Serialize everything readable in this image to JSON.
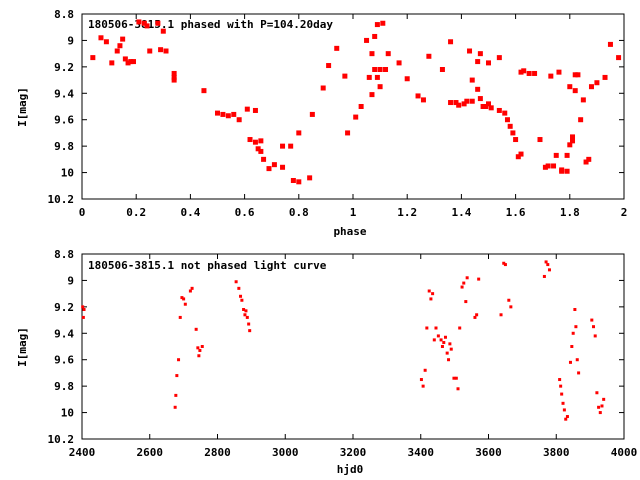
{
  "chart_data": [
    {
      "type": "scatter",
      "title": "180506-3815.1 phased with P=104.20day",
      "xlabel": "phase",
      "ylabel": "I[mag]",
      "xlim": [
        0,
        2
      ],
      "ylim": [
        10.2,
        8.8
      ],
      "y_inverted": true,
      "grid": false,
      "marker_color": "#ff0000",
      "xticks": [
        "0",
        "0.2",
        "0.4",
        "0.6",
        "0.8",
        "1",
        "1.2",
        "1.4",
        "1.6",
        "1.8",
        "2"
      ],
      "yticks": [
        "8.8",
        "9",
        "9.2",
        "9.4",
        "9.6",
        "9.8",
        "10",
        "10.2"
      ],
      "points": [
        [
          0.04,
          9.13
        ],
        [
          0.07,
          8.98
        ],
        [
          0.09,
          9.01
        ],
        [
          0.11,
          9.17
        ],
        [
          0.13,
          9.08
        ],
        [
          0.14,
          9.04
        ],
        [
          0.15,
          8.99
        ],
        [
          0.16,
          9.14
        ],
        [
          0.17,
          9.17
        ],
        [
          0.18,
          9.16
        ],
        [
          0.19,
          9.16
        ],
        [
          0.21,
          8.86
        ],
        [
          0.23,
          8.87
        ],
        [
          0.24,
          8.89
        ],
        [
          0.25,
          9.08
        ],
        [
          0.28,
          8.87
        ],
        [
          0.29,
          9.07
        ],
        [
          0.3,
          8.93
        ],
        [
          0.31,
          9.08
        ],
        [
          0.34,
          9.25
        ],
        [
          0.34,
          9.28
        ],
        [
          0.34,
          9.3
        ],
        [
          0.45,
          9.38
        ],
        [
          0.5,
          9.55
        ],
        [
          0.52,
          9.56
        ],
        [
          0.54,
          9.57
        ],
        [
          0.56,
          9.56
        ],
        [
          0.58,
          9.6
        ],
        [
          0.61,
          9.52
        ],
        [
          0.62,
          9.75
        ],
        [
          0.64,
          9.53
        ],
        [
          0.64,
          9.77
        ],
        [
          0.65,
          9.82
        ],
        [
          0.66,
          9.76
        ],
        [
          0.66,
          9.84
        ],
        [
          0.67,
          9.9
        ],
        [
          0.69,
          9.97
        ],
        [
          0.71,
          9.94
        ],
        [
          0.74,
          9.96
        ],
        [
          0.74,
          9.8
        ],
        [
          0.77,
          9.8
        ],
        [
          0.78,
          10.06
        ],
        [
          0.8,
          10.07
        ],
        [
          0.8,
          9.7
        ],
        [
          0.84,
          10.04
        ],
        [
          0.85,
          9.56
        ],
        [
          0.89,
          9.36
        ],
        [
          0.91,
          9.19
        ],
        [
          0.94,
          9.06
        ],
        [
          0.97,
          9.27
        ],
        [
          0.98,
          9.7
        ],
        [
          1.01,
          9.58
        ],
        [
          1.03,
          9.5
        ],
        [
          1.05,
          9.0
        ],
        [
          1.06,
          9.28
        ],
        [
          1.07,
          9.1
        ],
        [
          1.07,
          9.41
        ],
        [
          1.08,
          9.22
        ],
        [
          1.08,
          8.97
        ],
        [
          1.09,
          8.88
        ],
        [
          1.09,
          9.28
        ],
        [
          1.1,
          9.35
        ],
        [
          1.1,
          9.22
        ],
        [
          1.11,
          8.87
        ],
        [
          1.12,
          9.22
        ],
        [
          1.13,
          9.1
        ],
        [
          1.17,
          9.17
        ],
        [
          1.2,
          9.29
        ],
        [
          1.24,
          9.42
        ],
        [
          1.26,
          9.45
        ],
        [
          1.28,
          9.12
        ],
        [
          1.33,
          9.22
        ],
        [
          1.36,
          9.47
        ],
        [
          1.36,
          9.01
        ],
        [
          1.38,
          9.47
        ],
        [
          1.39,
          9.49
        ],
        [
          1.41,
          9.48
        ],
        [
          1.42,
          9.46
        ],
        [
          1.43,
          9.08
        ],
        [
          1.44,
          9.3
        ],
        [
          1.44,
          9.46
        ],
        [
          1.46,
          9.37
        ],
        [
          1.46,
          9.16
        ],
        [
          1.47,
          9.1
        ],
        [
          1.47,
          9.44
        ],
        [
          1.48,
          9.5
        ],
        [
          1.49,
          9.5
        ],
        [
          1.5,
          9.17
        ],
        [
          1.5,
          9.48
        ],
        [
          1.51,
          9.51
        ],
        [
          1.54,
          9.13
        ],
        [
          1.54,
          9.53
        ],
        [
          1.56,
          9.55
        ],
        [
          1.57,
          9.6
        ],
        [
          1.58,
          9.65
        ],
        [
          1.59,
          9.7
        ],
        [
          1.6,
          9.75
        ],
        [
          1.61,
          9.88
        ],
        [
          1.62,
          9.86
        ],
        [
          1.62,
          9.24
        ],
        [
          1.63,
          9.23
        ],
        [
          1.65,
          9.25
        ],
        [
          1.67,
          9.25
        ],
        [
          1.69,
          9.75
        ],
        [
          1.71,
          9.96
        ],
        [
          1.72,
          9.95
        ],
        [
          1.73,
          9.27
        ],
        [
          1.74,
          9.95
        ],
        [
          1.75,
          9.87
        ],
        [
          1.76,
          9.24
        ],
        [
          1.77,
          9.98
        ],
        [
          1.77,
          9.99
        ],
        [
          1.79,
          9.99
        ],
        [
          1.79,
          9.87
        ],
        [
          1.8,
          9.79
        ],
        [
          1.8,
          9.35
        ],
        [
          1.81,
          9.76
        ],
        [
          1.81,
          9.73
        ],
        [
          1.82,
          9.38
        ],
        [
          1.82,
          9.26
        ],
        [
          1.83,
          9.26
        ],
        [
          1.84,
          9.6
        ],
        [
          1.85,
          9.45
        ],
        [
          1.86,
          9.92
        ],
        [
          1.87,
          9.9
        ],
        [
          1.88,
          9.35
        ],
        [
          1.9,
          9.32
        ],
        [
          1.93,
          9.28
        ],
        [
          1.95,
          9.03
        ],
        [
          1.98,
          9.13
        ]
      ]
    },
    {
      "type": "scatter",
      "title": "180506-3815.1 not phased light curve",
      "xlabel": "hjd0",
      "ylabel": "I[mag]",
      "xlim": [
        2400,
        4000
      ],
      "ylim": [
        10.2,
        8.8
      ],
      "y_inverted": true,
      "grid": false,
      "marker_color": "#ff0000",
      "xticks": [
        "2400",
        "2600",
        "2800",
        "3000",
        "3200",
        "3400",
        "3600",
        "3800",
        "4000"
      ],
      "yticks": [
        "8.8",
        "9",
        "9.2",
        "9.4",
        "9.6",
        "9.8",
        "10",
        "10.2"
      ],
      "points": [
        [
          2402,
          9.2
        ],
        [
          2404,
          9.28
        ],
        [
          2406,
          9.22
        ],
        [
          2675,
          9.96
        ],
        [
          2677,
          9.87
        ],
        [
          2680,
          9.72
        ],
        [
          2685,
          9.6
        ],
        [
          2690,
          9.28
        ],
        [
          2695,
          9.13
        ],
        [
          2700,
          9.14
        ],
        [
          2705,
          9.18
        ],
        [
          2720,
          9.08
        ],
        [
          2725,
          9.06
        ],
        [
          2737,
          9.37
        ],
        [
          2742,
          9.51
        ],
        [
          2745,
          9.57
        ],
        [
          2748,
          9.53
        ],
        [
          2755,
          9.5
        ],
        [
          2855,
          9.01
        ],
        [
          2863,
          9.06
        ],
        [
          2868,
          9.12
        ],
        [
          2872,
          9.15
        ],
        [
          2877,
          9.22
        ],
        [
          2881,
          9.26
        ],
        [
          2884,
          9.23
        ],
        [
          2888,
          9.28
        ],
        [
          2892,
          9.33
        ],
        [
          2895,
          9.38
        ],
        [
          3402,
          9.75
        ],
        [
          3407,
          9.8
        ],
        [
          3413,
          9.68
        ],
        [
          3418,
          9.36
        ],
        [
          3425,
          9.08
        ],
        [
          3430,
          9.14
        ],
        [
          3435,
          9.1
        ],
        [
          3440,
          9.45
        ],
        [
          3445,
          9.36
        ],
        [
          3452,
          9.42
        ],
        [
          3460,
          9.45
        ],
        [
          3464,
          9.5
        ],
        [
          3468,
          9.47
        ],
        [
          3473,
          9.43
        ],
        [
          3478,
          9.55
        ],
        [
          3482,
          9.6
        ],
        [
          3486,
          9.48
        ],
        [
          3490,
          9.52
        ],
        [
          3498,
          9.74
        ],
        [
          3505,
          9.74
        ],
        [
          3510,
          9.82
        ],
        [
          3515,
          9.36
        ],
        [
          3522,
          9.05
        ],
        [
          3527,
          9.02
        ],
        [
          3533,
          9.16
        ],
        [
          3537,
          8.98
        ],
        [
          3560,
          9.28
        ],
        [
          3565,
          9.26
        ],
        [
          3571,
          8.99
        ],
        [
          3637,
          9.26
        ],
        [
          3645,
          8.87
        ],
        [
          3650,
          8.88
        ],
        [
          3660,
          9.15
        ],
        [
          3666,
          9.2
        ],
        [
          3765,
          8.97
        ],
        [
          3770,
          8.86
        ],
        [
          3775,
          8.88
        ],
        [
          3780,
          8.92
        ],
        [
          3810,
          9.75
        ],
        [
          3813,
          9.8
        ],
        [
          3816,
          9.86
        ],
        [
          3820,
          9.93
        ],
        [
          3824,
          9.98
        ],
        [
          3828,
          10.05
        ],
        [
          3833,
          10.03
        ],
        [
          3842,
          9.62
        ],
        [
          3846,
          9.5
        ],
        [
          3850,
          9.4
        ],
        [
          3855,
          9.22
        ],
        [
          3858,
          9.35
        ],
        [
          3862,
          9.6
        ],
        [
          3866,
          9.7
        ],
        [
          3905,
          9.3
        ],
        [
          3910,
          9.35
        ],
        [
          3915,
          9.42
        ],
        [
          3920,
          9.85
        ],
        [
          3925,
          9.96
        ],
        [
          3930,
          10.0
        ],
        [
          3935,
          9.95
        ],
        [
          3940,
          9.9
        ]
      ]
    }
  ]
}
